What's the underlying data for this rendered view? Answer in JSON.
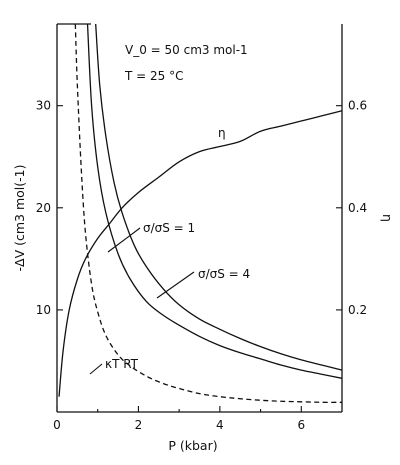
{
  "chart_data": {
    "type": "line",
    "title": "",
    "annotations": [
      "V_0 = 50 cm3 mol-1",
      "T = 25 °C"
    ],
    "xlabel": "P (kbar)",
    "ylabel_left": "-ΔV (cm3 mol(-1)",
    "ylabel_right": "η",
    "xlim": [
      0,
      7
    ],
    "ylim_left": [
      0,
      38
    ],
    "ylim_right": [
      0,
      0.76
    ],
    "x_ticks": [
      "0",
      "2",
      "4",
      "6"
    ],
    "x_tick_values": [
      0,
      2,
      4,
      6
    ],
    "y_left_ticks": [
      "10",
      "20",
      "30"
    ],
    "y_left_tick_values": [
      10,
      20,
      30
    ],
    "y_right_ticks": [
      "0.2",
      "0.4",
      "0.6"
    ],
    "y_right_tick_values": [
      0.2,
      0.4,
      0.6
    ],
    "grid": false,
    "series": [
      {
        "name": "η",
        "axis": "right",
        "style": "solid",
        "x": [
          0.05,
          0.15,
          0.3,
          0.5,
          0.7,
          1.0,
          1.3,
          1.6,
          2.0,
          2.5,
          3.0,
          3.5,
          4.0,
          4.5,
          5.0,
          5.5,
          6.0,
          6.5,
          7.0
        ],
        "y": [
          0.03,
          0.12,
          0.2,
          0.26,
          0.3,
          0.34,
          0.37,
          0.4,
          0.43,
          0.46,
          0.49,
          0.51,
          0.52,
          0.53,
          0.55,
          0.56,
          0.57,
          0.58,
          0.59
        ]
      },
      {
        "name": "σ/σS = 1",
        "axis": "left",
        "style": "solid",
        "x": [
          0.75,
          0.85,
          1.0,
          1.2,
          1.5,
          1.8,
          2.2,
          2.6,
          3.0,
          3.5,
          4.0,
          4.5,
          5.0,
          5.5,
          6.0,
          6.5,
          7.0
        ],
        "y": [
          38,
          30,
          24,
          19.5,
          15.5,
          13,
          10.8,
          9.5,
          8.5,
          7.4,
          6.5,
          5.8,
          5.2,
          4.6,
          4.1,
          3.7,
          3.3
        ]
      },
      {
        "name": "σ/σS = 4",
        "axis": "left",
        "style": "solid",
        "x": [
          0.95,
          1.05,
          1.2,
          1.4,
          1.6,
          1.9,
          2.2,
          2.6,
          3.0,
          3.5,
          4.0,
          4.5,
          5.0,
          5.5,
          6.0,
          6.5,
          7.0
        ],
        "y": [
          38,
          32,
          27,
          22.5,
          19.5,
          16.3,
          14.2,
          12.1,
          10.5,
          9.1,
          8.1,
          7.2,
          6.4,
          5.7,
          5.1,
          4.6,
          4.1
        ]
      },
      {
        "name": "κT RT",
        "axis": "left",
        "style": "dashed",
        "x": [
          0.45,
          0.5,
          0.6,
          0.7,
          0.85,
          1.0,
          1.2,
          1.5,
          1.8,
          2.2,
          2.6,
          3.0,
          3.5,
          4.0,
          4.5,
          5.0,
          5.5,
          6.0,
          6.5,
          7.0
        ],
        "y": [
          38,
          32,
          23.5,
          17.5,
          12.5,
          9.8,
          7.5,
          5.6,
          4.5,
          3.5,
          2.8,
          2.3,
          1.8,
          1.5,
          1.3,
          1.15,
          1.05,
          1.0,
          0.95,
          0.95
        ]
      }
    ]
  }
}
